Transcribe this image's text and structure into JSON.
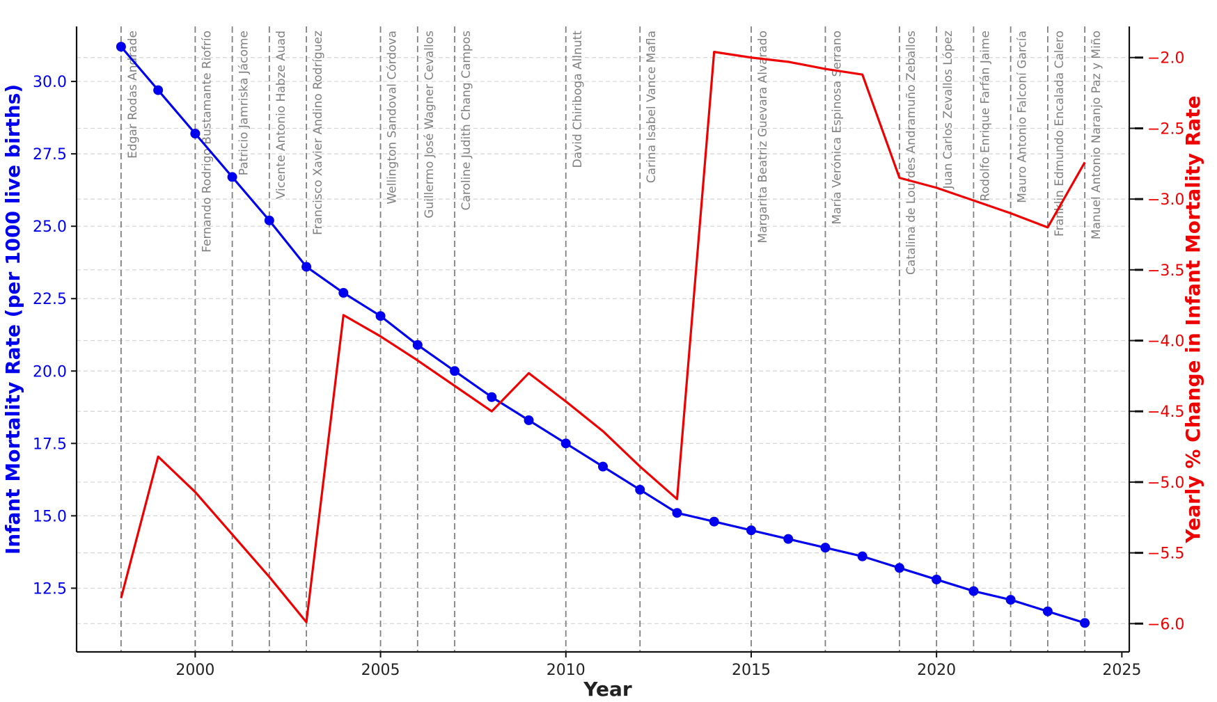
{
  "chart_data": {
    "type": "line",
    "xlabel": "Year",
    "ylabel_left": "Infant Mortality Rate (per 1000 live births)",
    "ylabel_right": "Yearly % Change in Infant Mortality Rate",
    "xlim": [
      1996.8,
      2025.2
    ],
    "ylim_left": [
      10.3,
      31.9
    ],
    "ylim_right": [
      -6.2,
      -1.78
    ],
    "x_ticks": [
      2000,
      2005,
      2010,
      2015,
      2020,
      2025
    ],
    "y_left_ticks": [
      12.5,
      15.0,
      17.5,
      20.0,
      22.5,
      25.0,
      27.5,
      30.0
    ],
    "y_right_ticks": [
      -6.0,
      -5.5,
      -5.0,
      -4.5,
      -4.0,
      -3.5,
      -3.0,
      -2.5,
      -2.0
    ],
    "grid": true,
    "colors": {
      "left_series": "#0000ee",
      "right_series": "#ee0000",
      "ministers": "#808080"
    },
    "series": [
      {
        "axis": "left",
        "marker": "circle",
        "x": [
          1998,
          1999,
          2000,
          2001,
          2002,
          2003,
          2004,
          2005,
          2006,
          2007,
          2008,
          2009,
          2010,
          2011,
          2012,
          2013,
          2014,
          2015,
          2016,
          2017,
          2018,
          2019,
          2020,
          2021,
          2022,
          2023,
          2024
        ],
        "values": [
          31.2,
          29.7,
          28.2,
          26.7,
          25.2,
          23.6,
          22.7,
          21.9,
          20.9,
          20.0,
          19.1,
          18.3,
          17.5,
          16.7,
          15.9,
          15.1,
          14.8,
          14.5,
          14.2,
          13.9,
          13.6,
          13.2,
          12.8,
          12.4,
          12.1,
          11.7,
          11.3
        ]
      },
      {
        "axis": "right",
        "x": [
          1998,
          1999,
          2000,
          2001,
          2002,
          2003,
          2004,
          2005,
          2006,
          2007,
          2008,
          2009,
          2010,
          2011,
          2012,
          2013,
          2014,
          2015,
          2016,
          2017,
          2018,
          2019,
          2020,
          2021,
          2022,
          2023,
          2024
        ],
        "values": [
          -5.82,
          -4.82,
          -5.07,
          -5.37,
          -5.67,
          -5.99,
          -3.82,
          -3.97,
          -4.14,
          -4.32,
          -4.5,
          -4.23,
          -4.43,
          -4.64,
          -4.89,
          -5.12,
          -1.96,
          -2.0,
          -2.03,
          -2.08,
          -2.12,
          -2.85,
          -2.92,
          -3.01,
          -3.1,
          -3.2,
          -2.74
        ]
      }
    ],
    "ministers": [
      {
        "year": 1998,
        "name": "Edgar Rodas Andrade"
      },
      {
        "year": 2000,
        "name": "Fernando Rodrigo Bustamante Riofrío"
      },
      {
        "year": 2001,
        "name": "Patricio Jamriska Jácome"
      },
      {
        "year": 2002,
        "name": "Vicente Antonio Habze Auad"
      },
      {
        "year": 2003,
        "name": "Francisco Xavier Andino Rodríguez"
      },
      {
        "year": 2005,
        "name": "Wellington Sandoval Córdova"
      },
      {
        "year": 2006,
        "name": "Guillermo José Wagner Cevallos"
      },
      {
        "year": 2007,
        "name": "Caroline Judith Chang Campos"
      },
      {
        "year": 2010,
        "name": "David Chiriboga Allnutt"
      },
      {
        "year": 2012,
        "name": "Carina Isabel Vance Mafla"
      },
      {
        "year": 2015,
        "name": "Margarita Beatriz Guevara Alvarado"
      },
      {
        "year": 2017,
        "name": "María Verónica Espinosa Serrano"
      },
      {
        "year": 2019,
        "name": "Catalina de Lourdes Andramuño Zeballos"
      },
      {
        "year": 2020,
        "name": "Juan Carlos Zevallos López"
      },
      {
        "year": 2021,
        "name": "Rodolfo Enrique Farfán Jaime"
      },
      {
        "year": 2022,
        "name": "Mauro Antonio Falconí García"
      },
      {
        "year": 2023,
        "name": "Franklin Edmundo Encalada Calero"
      },
      {
        "year": 2024,
        "name": "Manuel Antonio Naranjo Paz y Miño"
      }
    ]
  }
}
